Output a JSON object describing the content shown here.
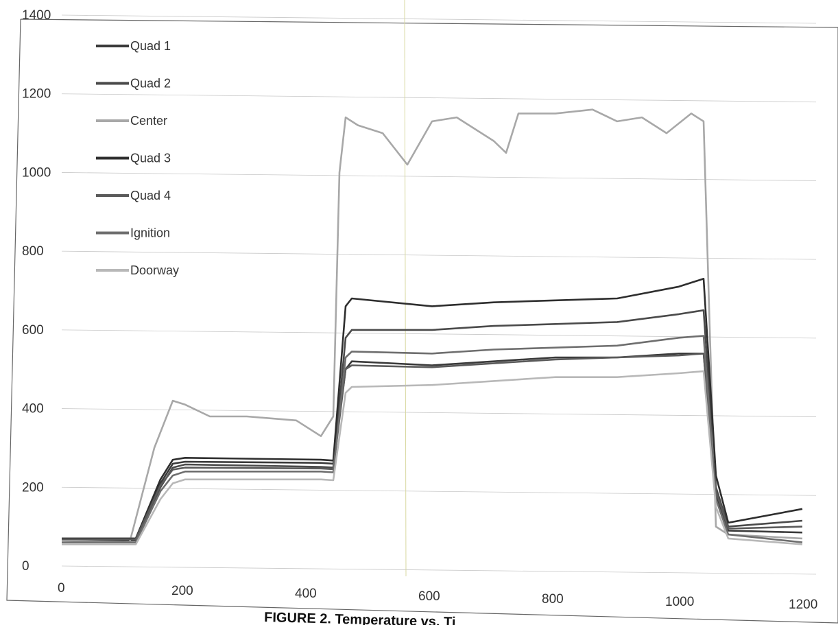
{
  "chart_data": {
    "type": "line",
    "title": "",
    "caption": "FIGURE 2. Temperature vs. Ti",
    "xlabel": "",
    "ylabel": "",
    "xlim": [
      0,
      1200
    ],
    "ylim": [
      0,
      1400
    ],
    "x_ticks": [
      0,
      200,
      400,
      600,
      800,
      1000,
      1200
    ],
    "y_ticks": [
      0,
      200,
      400,
      600,
      800,
      1000,
      1200,
      1400
    ],
    "grid": true,
    "legend_position": "top-left",
    "series": [
      {
        "name": "Quad 1",
        "color": "#3a3a3a",
        "points": [
          [
            0,
            70
          ],
          [
            120,
            70
          ],
          [
            160,
            210
          ],
          [
            180,
            260
          ],
          [
            200,
            265
          ],
          [
            420,
            262
          ],
          [
            440,
            260
          ],
          [
            460,
            500
          ],
          [
            470,
            520
          ],
          [
            600,
            510
          ],
          [
            700,
            520
          ],
          [
            800,
            530
          ],
          [
            900,
            530
          ],
          [
            1000,
            540
          ],
          [
            1040,
            540
          ],
          [
            1060,
            180
          ],
          [
            1080,
            90
          ],
          [
            1200,
            85
          ]
        ]
      },
      {
        "name": "Quad 2",
        "color": "#4a4a4a",
        "points": [
          [
            0,
            65
          ],
          [
            120,
            65
          ],
          [
            160,
            200
          ],
          [
            180,
            250
          ],
          [
            200,
            258
          ],
          [
            420,
            252
          ],
          [
            440,
            250
          ],
          [
            460,
            580
          ],
          [
            470,
            600
          ],
          [
            600,
            600
          ],
          [
            700,
            610
          ],
          [
            800,
            615
          ],
          [
            900,
            620
          ],
          [
            1000,
            640
          ],
          [
            1040,
            650
          ],
          [
            1060,
            200
          ],
          [
            1080,
            100
          ],
          [
            1200,
            115
          ]
        ]
      },
      {
        "name": "Center",
        "color": "#a8a8a8",
        "points": [
          [
            0,
            65
          ],
          [
            110,
            60
          ],
          [
            150,
            300
          ],
          [
            180,
            420
          ],
          [
            200,
            410
          ],
          [
            240,
            380
          ],
          [
            300,
            380
          ],
          [
            380,
            370
          ],
          [
            420,
            330
          ],
          [
            440,
            380
          ],
          [
            450,
            1000
          ],
          [
            460,
            1140
          ],
          [
            480,
            1120
          ],
          [
            520,
            1100
          ],
          [
            560,
            1020
          ],
          [
            600,
            1130
          ],
          [
            640,
            1140
          ],
          [
            700,
            1080
          ],
          [
            720,
            1050
          ],
          [
            740,
            1150
          ],
          [
            800,
            1150
          ],
          [
            860,
            1160
          ],
          [
            900,
            1130
          ],
          [
            940,
            1140
          ],
          [
            980,
            1100
          ],
          [
            1020,
            1150
          ],
          [
            1040,
            1130
          ],
          [
            1050,
            600
          ],
          [
            1060,
            100
          ],
          [
            1080,
            80
          ],
          [
            1200,
            70
          ]
        ]
      },
      {
        "name": "Quad 3",
        "color": "#2e2e2e",
        "points": [
          [
            0,
            70
          ],
          [
            120,
            70
          ],
          [
            160,
            220
          ],
          [
            180,
            270
          ],
          [
            200,
            275
          ],
          [
            420,
            270
          ],
          [
            440,
            268
          ],
          [
            460,
            660
          ],
          [
            470,
            680
          ],
          [
            600,
            660
          ],
          [
            700,
            670
          ],
          [
            800,
            675
          ],
          [
            900,
            680
          ],
          [
            1000,
            710
          ],
          [
            1040,
            730
          ],
          [
            1060,
            230
          ],
          [
            1080,
            110
          ],
          [
            1200,
            145
          ]
        ]
      },
      {
        "name": "Quad 4",
        "color": "#5a5a5a",
        "points": [
          [
            0,
            68
          ],
          [
            120,
            68
          ],
          [
            160,
            205
          ],
          [
            180,
            245
          ],
          [
            200,
            250
          ],
          [
            420,
            248
          ],
          [
            440,
            246
          ],
          [
            460,
            500
          ],
          [
            470,
            510
          ],
          [
            600,
            505
          ],
          [
            700,
            515
          ],
          [
            800,
            525
          ],
          [
            900,
            530
          ],
          [
            1000,
            535
          ],
          [
            1040,
            540
          ],
          [
            1060,
            190
          ],
          [
            1080,
            95
          ],
          [
            1200,
            100
          ]
        ]
      },
      {
        "name": "Ignition",
        "color": "#6e6e6e",
        "points": [
          [
            0,
            60
          ],
          [
            120,
            60
          ],
          [
            160,
            190
          ],
          [
            180,
            230
          ],
          [
            200,
            240
          ],
          [
            420,
            240
          ],
          [
            440,
            238
          ],
          [
            460,
            530
          ],
          [
            470,
            545
          ],
          [
            600,
            540
          ],
          [
            700,
            550
          ],
          [
            800,
            555
          ],
          [
            900,
            560
          ],
          [
            1000,
            580
          ],
          [
            1040,
            585
          ],
          [
            1060,
            170
          ],
          [
            1080,
            80
          ],
          [
            1200,
            60
          ]
        ]
      },
      {
        "name": "Doorway",
        "color": "#b8b8b8",
        "points": [
          [
            0,
            55
          ],
          [
            120,
            55
          ],
          [
            160,
            170
          ],
          [
            180,
            210
          ],
          [
            200,
            220
          ],
          [
            420,
            220
          ],
          [
            440,
            218
          ],
          [
            460,
            440
          ],
          [
            470,
            455
          ],
          [
            600,
            460
          ],
          [
            700,
            470
          ],
          [
            800,
            480
          ],
          [
            900,
            480
          ],
          [
            1000,
            490
          ],
          [
            1040,
            495
          ],
          [
            1060,
            150
          ],
          [
            1080,
            70
          ],
          [
            1200,
            55
          ]
        ]
      }
    ]
  }
}
